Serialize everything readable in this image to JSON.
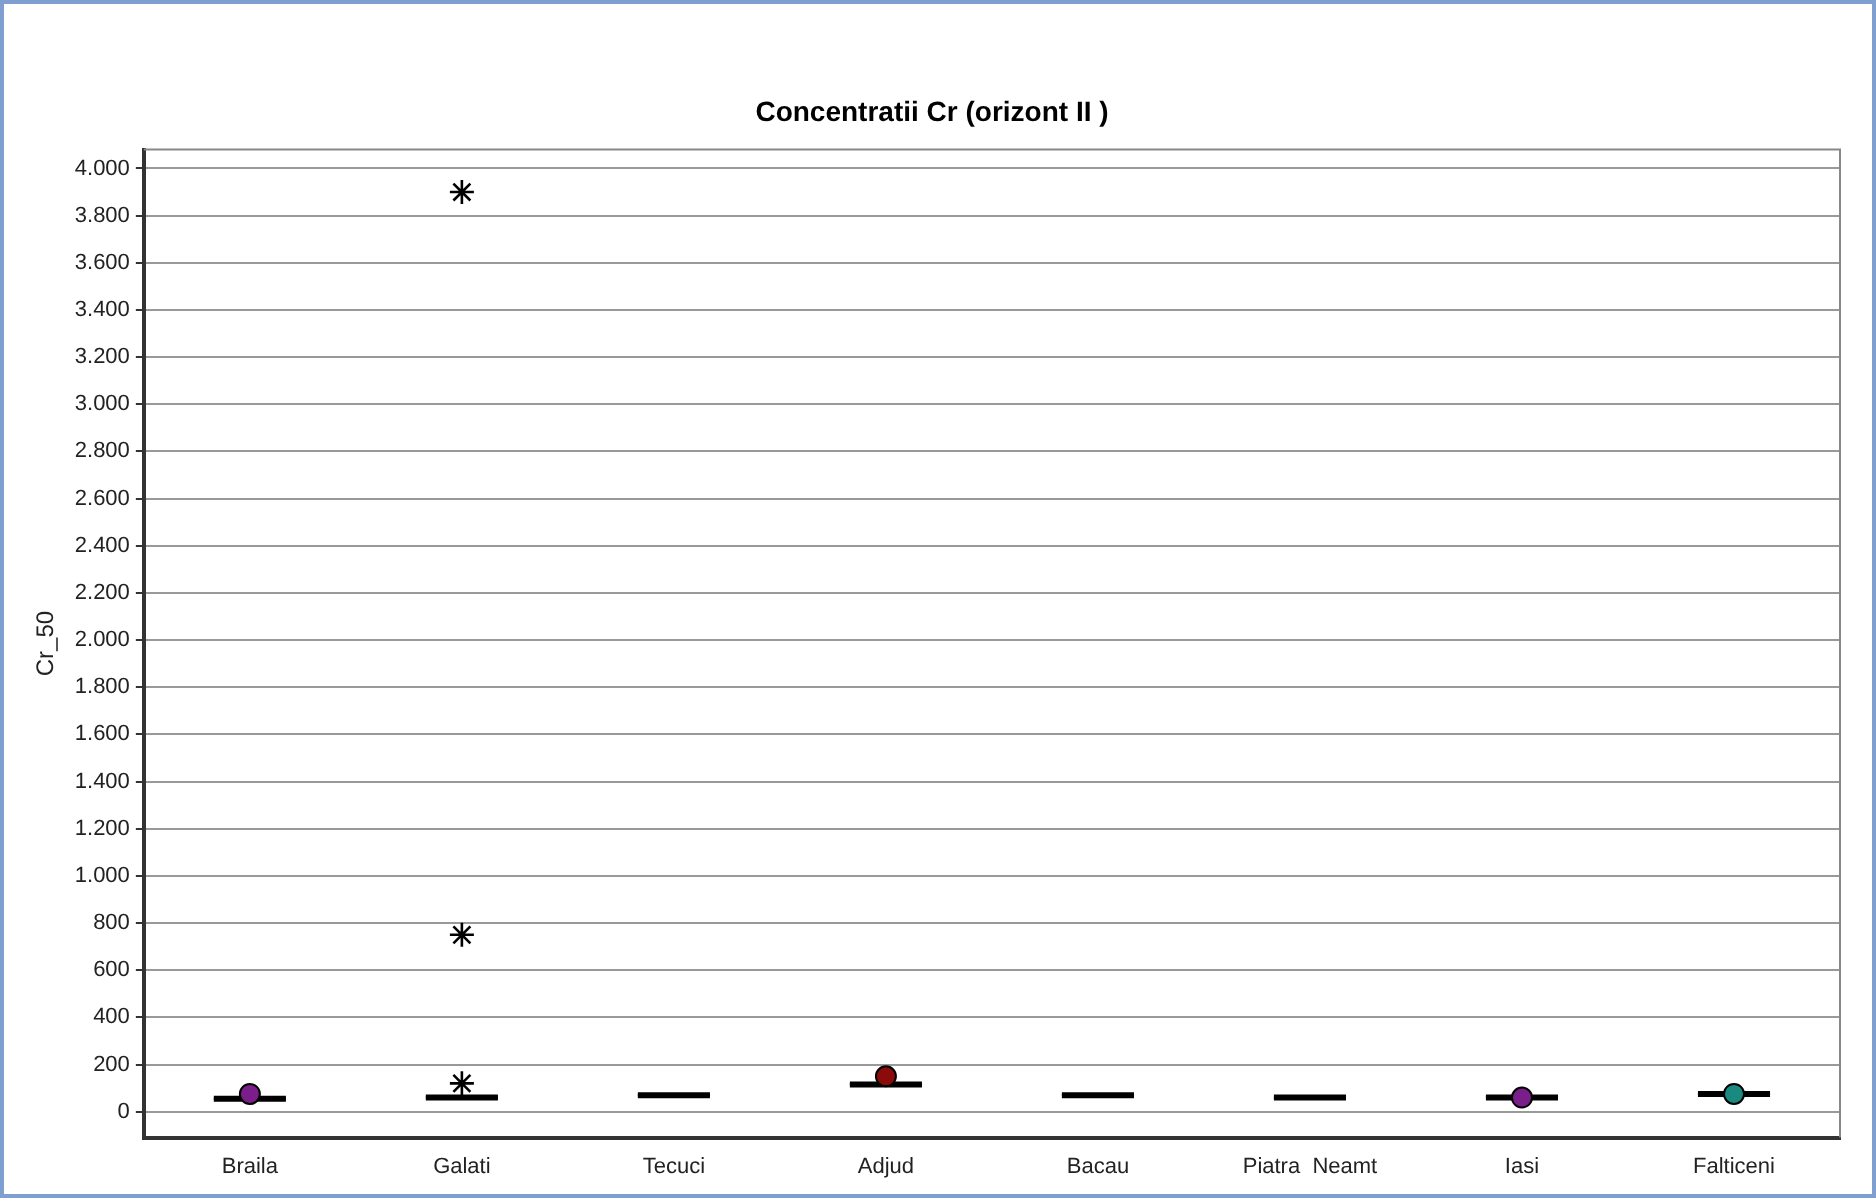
{
  "chart_data": {
    "type": "box",
    "title": "Concentratii Cr (orizont II )",
    "ylabel": "Cr_50",
    "categories": [
      "Braila",
      "Galati",
      "Tecuci",
      "Adjud",
      "Bacau",
      "Piatra  Neamt",
      "Iasi",
      "Falticeni"
    ],
    "boxes": [
      {
        "low": 50,
        "q1": 50,
        "median": 55,
        "q3": 60,
        "high": 60
      },
      {
        "low": 55,
        "q1": 55,
        "median": 60,
        "q3": 65,
        "high": 65,
        "outliers": [
          120,
          750,
          3900
        ]
      },
      {
        "low": 65,
        "q1": 65,
        "median": 70,
        "q3": 75,
        "high": 75
      },
      {
        "low": 110,
        "q1": 110,
        "median": 115,
        "q3": 120,
        "high": 120
      },
      {
        "low": 65,
        "q1": 65,
        "median": 70,
        "q3": 75,
        "high": 75
      },
      {
        "low": 58,
        "q1": 58,
        "median": 60,
        "q3": 62,
        "high": 62
      },
      {
        "low": 55,
        "q1": 55,
        "median": 60,
        "q3": 65,
        "high": 65
      },
      {
        "low": 70,
        "q1": 70,
        "median": 75,
        "q3": 80,
        "high": 80
      }
    ],
    "series": [
      {
        "type": "scatter",
        "marker": "circle",
        "x": [
          "Braila",
          "Adjud",
          "Iasi",
          "Falticeni"
        ],
        "values": [
          75,
          150,
          60,
          75
        ],
        "colors": [
          "#7a1f8a",
          "#8b0a0a",
          "#7a1f8a",
          "#1a8a80"
        ]
      }
    ],
    "color": "#000000",
    "marker": "star",
    "ylim": [
      -110,
      4080
    ],
    "yticks": [
      0,
      200,
      400,
      600,
      800,
      {
        "value": 1000,
        "label": "1.000"
      },
      {
        "value": 1200,
        "label": "1.200"
      },
      {
        "value": 1400,
        "label": "1.400"
      },
      {
        "value": 1600,
        "label": "1.600"
      },
      {
        "value": 1800,
        "label": "1.800"
      },
      {
        "value": 2000,
        "label": "2.000"
      },
      {
        "value": 2200,
        "label": "2.200"
      },
      {
        "value": 2400,
        "label": "2.400"
      },
      {
        "value": 2600,
        "label": "2.600"
      },
      {
        "value": 2800,
        "label": "2.800"
      },
      {
        "value": 3000,
        "label": "3.000"
      },
      {
        "value": 3200,
        "label": "3.200"
      },
      {
        "value": 3400,
        "label": "3.400"
      },
      {
        "value": 3600,
        "label": "3.600"
      },
      {
        "value": 3800,
        "label": "3.800"
      },
      {
        "value": 4000,
        "label": "4.000"
      }
    ],
    "grid": "y",
    "legend": false
  }
}
